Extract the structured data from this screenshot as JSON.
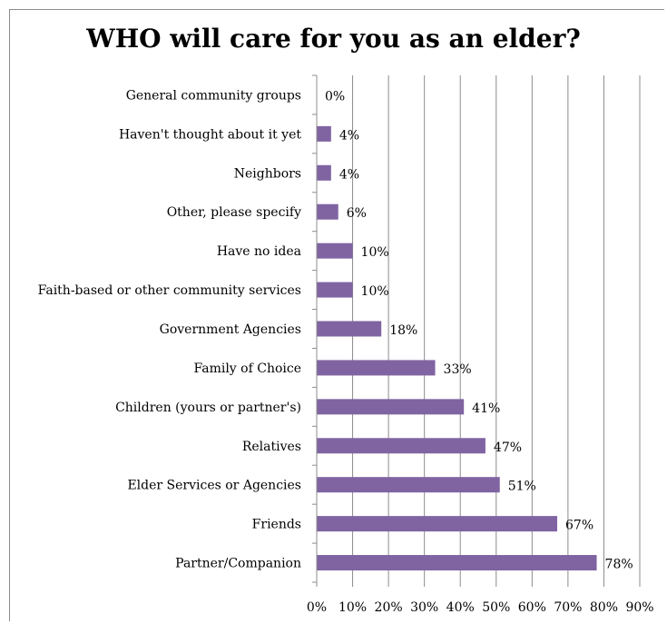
{
  "chart_data": {
    "type": "bar",
    "orientation": "horizontal",
    "title": "WHO will care for you as an elder?",
    "xlabel": "",
    "ylabel": "",
    "categories": [
      "General community groups",
      "Haven't thought about it yet",
      "Neighbors",
      "Other, please specify",
      "Have no idea",
      "Faith-based or other community services",
      "Government Agencies",
      "Family of Choice",
      "Children (yours or partner's)",
      "Relatives",
      "Elder Services or Agencies",
      "Friends",
      "Partner/Companion"
    ],
    "values": [
      0,
      4,
      4,
      6,
      10,
      10,
      18,
      33,
      41,
      47,
      51,
      67,
      78
    ],
    "data_labels": [
      "0%",
      "4%",
      "4%",
      "6%",
      "10%",
      "10%",
      "18%",
      "33%",
      "41%",
      "47%",
      "51%",
      "67%",
      "78%"
    ],
    "xlim": [
      0,
      90
    ],
    "xticks": [
      "0%",
      "10%",
      "20%",
      "30%",
      "40%",
      "50%",
      "60%",
      "70%",
      "80%",
      "90%"
    ],
    "grid": true,
    "legend": "none",
    "bar_color": "#8064a2"
  }
}
